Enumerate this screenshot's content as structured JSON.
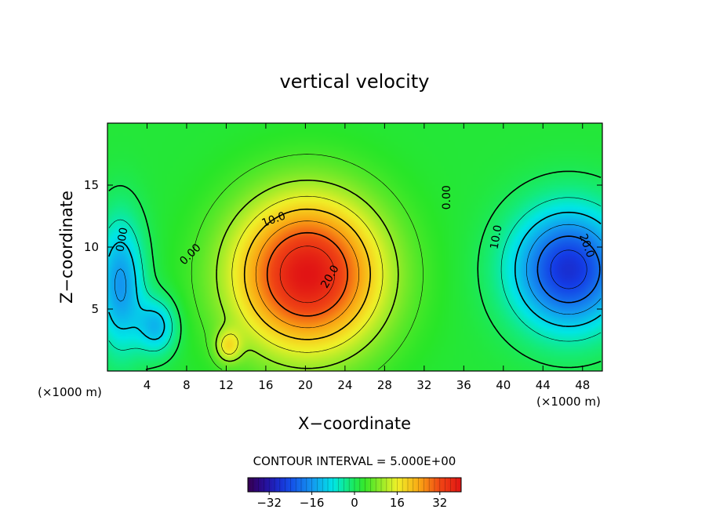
{
  "chart_data": {
    "type": "heatmap",
    "title": "vertical velocity",
    "xlabel": "X−coordinate",
    "ylabel": "Z−coordinate",
    "x_unit_left": "(×1000 m)",
    "x_unit_right": "(×1000 m)",
    "xlim": [
      0,
      50
    ],
    "ylim": [
      0,
      20
    ],
    "x_ticks": [
      4,
      8,
      12,
      16,
      20,
      24,
      28,
      32,
      36,
      40,
      44,
      48
    ],
    "y_ticks": [
      5,
      10,
      15
    ],
    "contour_interval_text": "CONTOUR INTERVAL = 5.000E+00",
    "colorbar": {
      "range": [
        -40,
        40
      ],
      "ticks": [
        -32,
        -16,
        0,
        16,
        32
      ],
      "tick_labels": [
        "−32",
        "−16",
        "0",
        "16",
        "32"
      ]
    },
    "contour_labels": [
      {
        "text": "10.0",
        "x": 16.8,
        "z": 12.2,
        "rotate": -20
      },
      {
        "text": "20.0",
        "x": 22.5,
        "z": 7.6,
        "rotate": -60
      },
      {
        "text": "0.00",
        "x": 8.4,
        "z": 9.4,
        "rotate": -45
      },
      {
        "text": "0.00",
        "x": 34.3,
        "z": 14.0,
        "rotate": -90
      },
      {
        "text": "0.00",
        "x": 1.5,
        "z": 10.6,
        "rotate": -80
      },
      {
        "text": "10.0",
        "x": 39.3,
        "z": 10.8,
        "rotate": -80
      },
      {
        "text": "20.0",
        "x": 48.4,
        "z": 10.1,
        "rotate": 70
      }
    ],
    "field_features": [
      {
        "label": "updraft",
        "x": 20.2,
        "z": 7.8,
        "peak": 38,
        "sx": 5.2,
        "sz": 4.3
      },
      {
        "label": "downdraft-right",
        "x": 46.6,
        "z": 8.2,
        "peak": -30,
        "sx": 4.0,
        "sz": 3.4
      },
      {
        "label": "downdraft-left",
        "x": 1.3,
        "z": 7.0,
        "peak": -18,
        "sx": 1.7,
        "sz": 3.8
      },
      {
        "label": "downdraft-left-lower",
        "x": 5.0,
        "z": 3.6,
        "peak": -14,
        "sx": 1.4,
        "sz": 1.6
      },
      {
        "label": "updraft-small",
        "x": 12.2,
        "z": 2.0,
        "peak": 12,
        "sx": 0.9,
        "sz": 0.9
      }
    ]
  }
}
